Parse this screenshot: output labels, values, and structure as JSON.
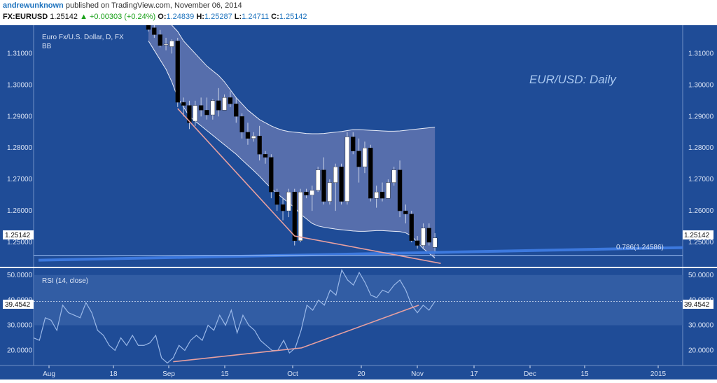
{
  "header": {
    "author": "andrewunknown",
    "published": "published on TradingView.com, November 06, 2014",
    "symbol": "FX:EURUSD",
    "last": "1.25142",
    "change": "▲ +0.00303 (+0.24%)",
    "o_label": "O:",
    "o": "1.24839",
    "h_label": "H:",
    "h": "1.25287",
    "l_label": "L:",
    "l": "1.24711",
    "c_label": "C:",
    "c": "1.25142"
  },
  "colors": {
    "background": "#1f4c97",
    "up_candle": "#ffffff",
    "down_candle": "#000000",
    "band_fill": "#6a7ab3",
    "trendline": "#e8a0a0",
    "fib_line": "#3d79de",
    "rsi_line": "#9ab8e8"
  },
  "chart_data": [
    {
      "type": "candlestick",
      "title": "Euro Fx/U.S. Dollar, D, FX",
      "indicator": "BB",
      "annotation": "EUR/USD: Daily",
      "fib_label": "0.786(1.24586)",
      "fib_level": 1.24586,
      "last_price_label": "1.25142",
      "ylim": [
        1.242,
        1.319
      ],
      "y_ticks": [
        "1.31000",
        "1.30000",
        "1.29000",
        "1.28000",
        "1.27000",
        "1.26000",
        "1.25000"
      ],
      "x_ticks": [
        "Aug",
        "18",
        "Sep",
        "15",
        "Oct",
        "20",
        "Nov",
        "17",
        "Dec",
        "15",
        "2015"
      ],
      "candles": [
        {
          "o": 1.3192,
          "h": 1.32,
          "l": 1.317,
          "c": 1.3176
        },
        {
          "o": 1.3182,
          "h": 1.3204,
          "l": 1.315,
          "c": 1.316
        },
        {
          "o": 1.316,
          "h": 1.3175,
          "l": 1.312,
          "c": 1.3125
        },
        {
          "o": 1.3128,
          "h": 1.315,
          "l": 1.311,
          "c": 1.313
        },
        {
          "o": 1.3122,
          "h": 1.3145,
          "l": 1.31,
          "c": 1.314
        },
        {
          "o": 1.314,
          "h": 1.315,
          "l": 1.293,
          "c": 1.2945
        },
        {
          "o": 1.2945,
          "h": 1.296,
          "l": 1.29,
          "c": 1.2935
        },
        {
          "o": 1.2935,
          "h": 1.295,
          "l": 1.286,
          "c": 1.288
        },
        {
          "o": 1.2885,
          "h": 1.295,
          "l": 1.287,
          "c": 1.2935
        },
        {
          "o": 1.2935,
          "h": 1.296,
          "l": 1.29,
          "c": 1.292
        },
        {
          "o": 1.292,
          "h": 1.296,
          "l": 1.289,
          "c": 1.2905
        },
        {
          "o": 1.2905,
          "h": 1.2955,
          "l": 1.289,
          "c": 1.295
        },
        {
          "o": 1.295,
          "h": 1.299,
          "l": 1.29,
          "c": 1.292
        },
        {
          "o": 1.292,
          "h": 1.297,
          "l": 1.292,
          "c": 1.296
        },
        {
          "o": 1.296,
          "h": 1.298,
          "l": 1.293,
          "c": 1.294
        },
        {
          "o": 1.294,
          "h": 1.296,
          "l": 1.288,
          "c": 1.29
        },
        {
          "o": 1.29,
          "h": 1.291,
          "l": 1.283,
          "c": 1.285
        },
        {
          "o": 1.285,
          "h": 1.288,
          "l": 1.281,
          "c": 1.283
        },
        {
          "o": 1.283,
          "h": 1.285,
          "l": 1.282,
          "c": 1.2838
        },
        {
          "o": 1.2838,
          "h": 1.287,
          "l": 1.276,
          "c": 1.278
        },
        {
          "o": 1.278,
          "h": 1.279,
          "l": 1.275,
          "c": 1.277
        },
        {
          "o": 1.277,
          "h": 1.278,
          "l": 1.264,
          "c": 1.266
        },
        {
          "o": 1.266,
          "h": 1.267,
          "l": 1.26,
          "c": 1.262
        },
        {
          "o": 1.262,
          "h": 1.264,
          "l": 1.257,
          "c": 1.26
        },
        {
          "o": 1.26,
          "h": 1.267,
          "l": 1.258,
          "c": 1.266
        },
        {
          "o": 1.266,
          "h": 1.267,
          "l": 1.249,
          "c": 1.2505
        },
        {
          "o": 1.2505,
          "h": 1.267,
          "l": 1.25,
          "c": 1.266
        },
        {
          "o": 1.266,
          "h": 1.267,
          "l": 1.264,
          "c": 1.265
        },
        {
          "o": 1.265,
          "h": 1.268,
          "l": 1.26,
          "c": 1.2665
        },
        {
          "o": 1.2665,
          "h": 1.274,
          "l": 1.266,
          "c": 1.273
        },
        {
          "o": 1.273,
          "h": 1.277,
          "l": 1.262,
          "c": 1.263
        },
        {
          "o": 1.263,
          "h": 1.27,
          "l": 1.262,
          "c": 1.269
        },
        {
          "o": 1.269,
          "h": 1.275,
          "l": 1.26,
          "c": 1.274
        },
        {
          "o": 1.274,
          "h": 1.275,
          "l": 1.262,
          "c": 1.263
        },
        {
          "o": 1.263,
          "h": 1.285,
          "l": 1.262,
          "c": 1.2835
        },
        {
          "o": 1.2835,
          "h": 1.285,
          "l": 1.278,
          "c": 1.279
        },
        {
          "o": 1.279,
          "h": 1.283,
          "l": 1.269,
          "c": 1.274
        },
        {
          "o": 1.274,
          "h": 1.282,
          "l": 1.272,
          "c": 1.28
        },
        {
          "o": 1.28,
          "h": 1.281,
          "l": 1.263,
          "c": 1.264
        },
        {
          "o": 1.264,
          "h": 1.268,
          "l": 1.261,
          "c": 1.266
        },
        {
          "o": 1.266,
          "h": 1.269,
          "l": 1.263,
          "c": 1.264
        },
        {
          "o": 1.264,
          "h": 1.27,
          "l": 1.264,
          "c": 1.269
        },
        {
          "o": 1.269,
          "h": 1.274,
          "l": 1.268,
          "c": 1.273
        },
        {
          "o": 1.273,
          "h": 1.276,
          "l": 1.258,
          "c": 1.26
        },
        {
          "o": 1.26,
          "h": 1.262,
          "l": 1.256,
          "c": 1.259
        },
        {
          "o": 1.259,
          "h": 1.26,
          "l": 1.25,
          "c": 1.2505
        },
        {
          "o": 1.2505,
          "h": 1.252,
          "l": 1.248,
          "c": 1.249
        },
        {
          "o": 1.249,
          "h": 1.256,
          "l": 1.248,
          "c": 1.2545
        },
        {
          "o": 1.2545,
          "h": 1.256,
          "l": 1.249,
          "c": 1.25
        },
        {
          "o": 1.2484,
          "h": 1.2529,
          "l": 1.2471,
          "c": 1.2514
        }
      ],
      "bollinger_upper": [
        1.3235,
        1.323,
        1.322,
        1.321,
        1.319,
        1.317,
        1.314,
        1.312,
        1.31,
        1.308,
        1.306,
        1.3045,
        1.303,
        1.301,
        1.2985,
        1.296,
        1.294,
        1.292,
        1.2905,
        1.289,
        1.288,
        1.287,
        1.2862,
        1.2856,
        1.2852,
        1.285,
        1.2848,
        1.2846,
        1.2845,
        1.2845,
        1.2846,
        1.2848,
        1.285,
        1.2852,
        1.2855,
        1.2858,
        1.2858,
        1.2857,
        1.2856,
        1.2855,
        1.2854,
        1.2853,
        1.2853,
        1.2854,
        1.2856,
        1.2858,
        1.286,
        1.2862,
        1.2864,
        1.2866
      ],
      "bollinger_lower": [
        1.314,
        1.311,
        1.308,
        1.305,
        1.301,
        1.296,
        1.293,
        1.29,
        1.2885,
        1.287,
        1.2855,
        1.284,
        1.2825,
        1.281,
        1.2795,
        1.278,
        1.2762,
        1.2745,
        1.2728,
        1.271,
        1.269,
        1.2672,
        1.2655,
        1.264,
        1.2625,
        1.261,
        1.259,
        1.2575,
        1.256,
        1.2552,
        1.2548,
        1.2545,
        1.2542,
        1.254,
        1.2538,
        1.2536,
        1.2535,
        1.2535,
        1.2536,
        1.2537,
        1.2537,
        1.2536,
        1.2535,
        1.2534,
        1.253,
        1.252,
        1.25,
        1.248,
        1.2465,
        1.245
      ],
      "trendline_upper": [
        [
          5,
          1.2925
        ],
        [
          25,
          1.252
        ],
        [
          50,
          1.2433
        ]
      ],
      "fib_line_points": [
        [
          0,
          1.245
        ],
        [
          55,
          1.247
        ]
      ]
    },
    {
      "type": "line",
      "title": "RSI (14, close)",
      "ylim": [
        14,
        53
      ],
      "y_ticks": [
        "50.0000",
        "40.0000",
        "30.0000",
        "20.0000"
      ],
      "band": [
        30,
        50
      ],
      "last_label": "39.4542",
      "last_value": 39.4542,
      "values": [
        25,
        24,
        33,
        32,
        28,
        38,
        35,
        34,
        33,
        39,
        35,
        28,
        26,
        22,
        20,
        25,
        22,
        26,
        22,
        22,
        23,
        26,
        17,
        15,
        17,
        22,
        20,
        24,
        26,
        24,
        30,
        28,
        34,
        30,
        36,
        27,
        34,
        30,
        28,
        24,
        22,
        20,
        20,
        24,
        19,
        21,
        28,
        38,
        36,
        40,
        38,
        44,
        42,
        52,
        48,
        46,
        51,
        47,
        42,
        41,
        44,
        43,
        46,
        48,
        44,
        38,
        35,
        38,
        36,
        39.4542
      ],
      "trendline": [
        [
          26,
          15.5
        ],
        [
          49,
          21
        ],
        [
          70,
          38
        ]
      ]
    }
  ]
}
